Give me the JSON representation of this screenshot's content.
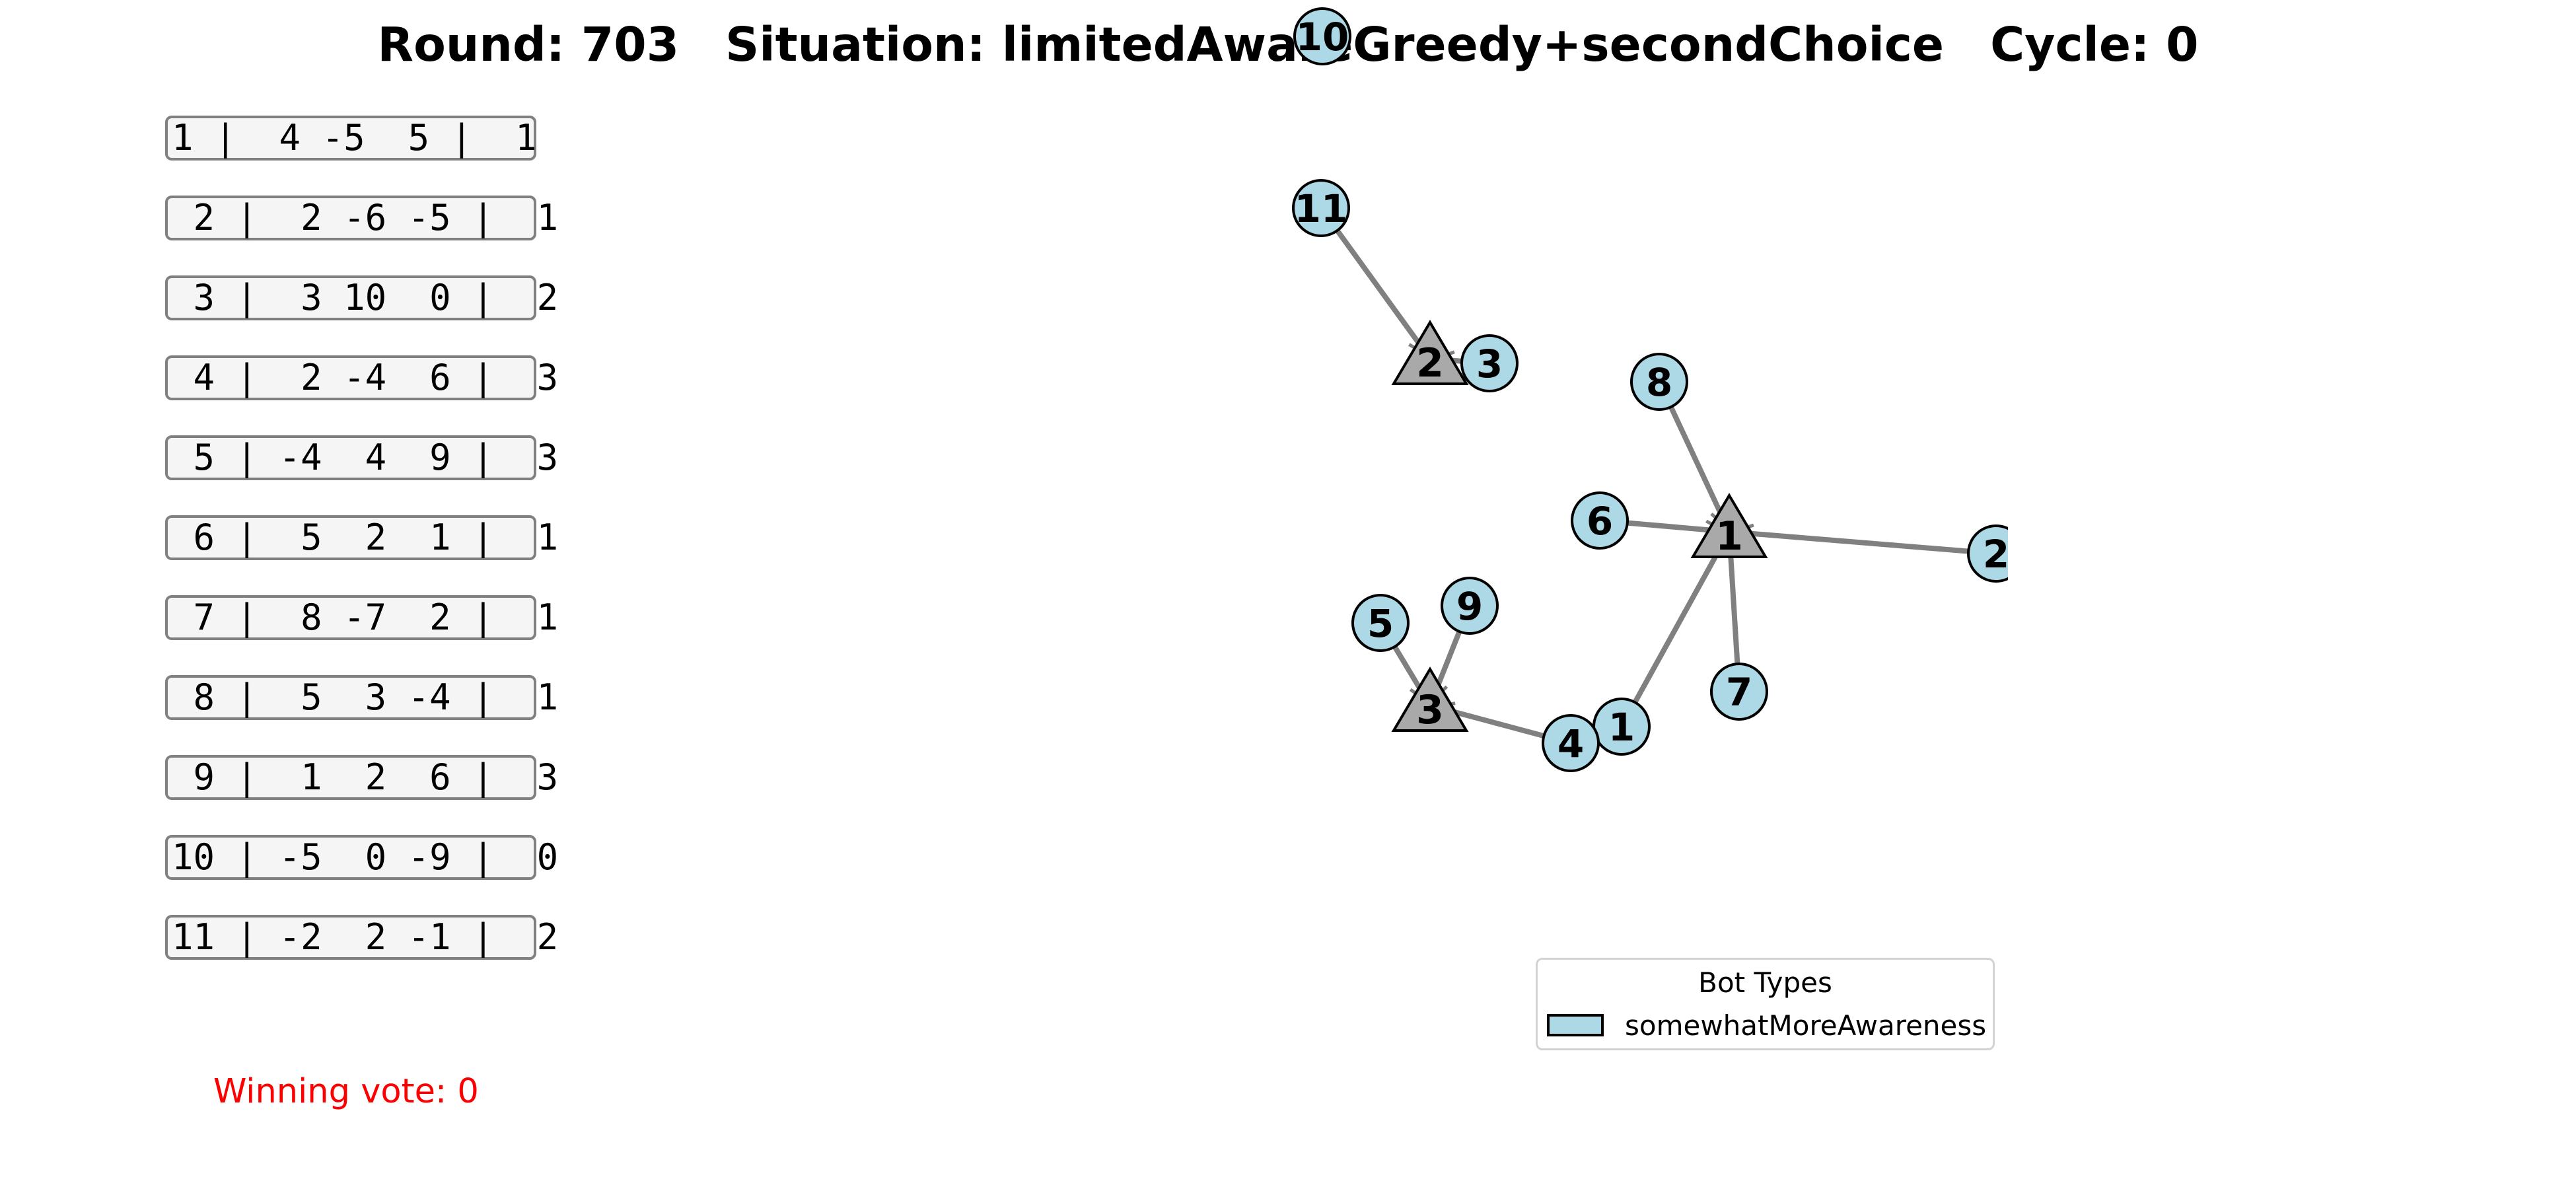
{
  "title": {
    "round": "Round: 703",
    "situation": "Situation: limitedAwareGreedy+secondChoice",
    "cycle": "Cycle: 0"
  },
  "rows": [
    "1 |  4 -5  5 |  1",
    " 2 |  2 -6 -5 |  1",
    " 3 |  3 10  0 |  2",
    " 4 |  2 -4  6 |  3",
    " 5 | -4  4  9 |  3",
    " 6 |  5  2  1 |  1",
    " 7 |  8 -7  2 |  1",
    " 8 |  5  3 -4 |  1",
    " 9 |  1  2  6 |  3",
    "10 | -5  0 -9 |  0",
    "11 | -2  2 -1 |  2"
  ],
  "winning_vote": "Winning vote: 0",
  "legend": {
    "title": "Bot Types",
    "entries": [
      {
        "label": "somewhatMoreAwareness",
        "color": "#add8e6"
      }
    ]
  },
  "graph": {
    "colors": {
      "bot": "#add8e6",
      "option": "#a9a9a9",
      "edge": "#808080"
    },
    "options": [
      {
        "id": 1,
        "label": "1"
      },
      {
        "id": 2,
        "label": "2"
      },
      {
        "id": 3,
        "label": "3"
      }
    ],
    "bots": [
      {
        "id": 1,
        "label": "1",
        "target": 1
      },
      {
        "id": 2,
        "label": "2",
        "target": 1
      },
      {
        "id": 3,
        "label": "3",
        "target": 2
      },
      {
        "id": 4,
        "label": "4",
        "target": 3
      },
      {
        "id": 5,
        "label": "5",
        "target": 3
      },
      {
        "id": 6,
        "label": "6",
        "target": 1
      },
      {
        "id": 7,
        "label": "7",
        "target": 1
      },
      {
        "id": 8,
        "label": "8",
        "target": 1
      },
      {
        "id": 9,
        "label": "9",
        "target": 3
      },
      {
        "id": 10,
        "label": "10",
        "target": null
      },
      {
        "id": 11,
        "label": "11",
        "target": 2
      }
    ]
  }
}
